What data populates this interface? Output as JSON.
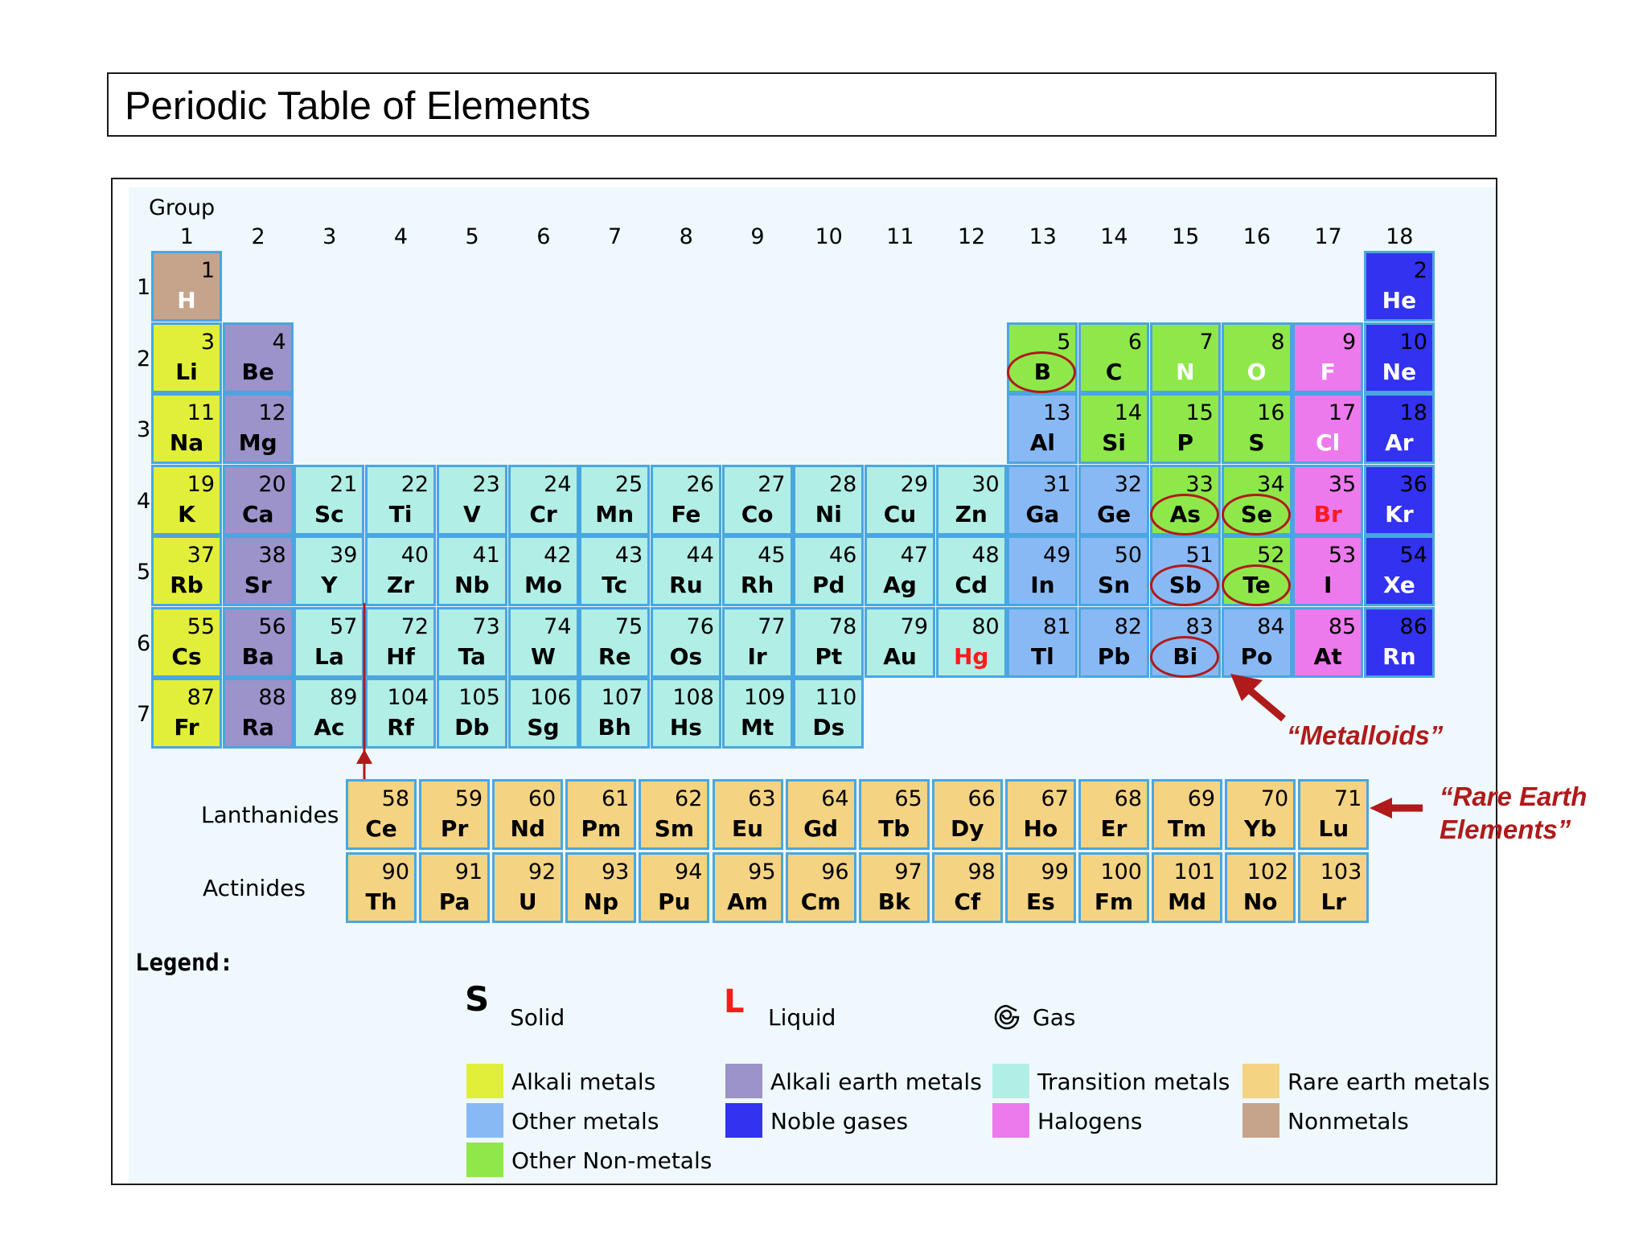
{
  "title": "Periodic Table of Elements",
  "group_caption": "Group",
  "group_numbers": [
    "1",
    "2",
    "3",
    "4",
    "5",
    "6",
    "7",
    "8",
    "9",
    "10",
    "11",
    "12",
    "13",
    "14",
    "15",
    "16",
    "17",
    "18"
  ],
  "period_numbers": [
    "1",
    "2",
    "3",
    "4",
    "5",
    "6",
    "7"
  ],
  "series_labels": {
    "lanthanides": "Lanthanides",
    "actinides": "Actinides"
  },
  "colors": {
    "alkali": "#e2ef3a",
    "alkaline_earth": "#9b93c9",
    "transition": "#b1eee6",
    "rare_earth": "#f4d382",
    "other_metal": "#89b9f5",
    "noble": "#3232f0",
    "halogen": "#ed7aed",
    "nonmetal": "#c6a38b",
    "other_nonmetal": "#8fe84a",
    "annotation": "#b01a1a",
    "liquid_text": "#ff1a1a"
  },
  "elements": [
    {
      "n": "1",
      "s": "H",
      "g": 1,
      "p": 1,
      "c": "nonmetal",
      "st": "gas"
    },
    {
      "n": "2",
      "s": "He",
      "g": 18,
      "p": 1,
      "c": "noble",
      "st": "gas"
    },
    {
      "n": "3",
      "s": "Li",
      "g": 1,
      "p": 2,
      "c": "alkali",
      "st": "solid"
    },
    {
      "n": "4",
      "s": "Be",
      "g": 2,
      "p": 2,
      "c": "alkaline_earth",
      "st": "solid"
    },
    {
      "n": "5",
      "s": "B",
      "g": 13,
      "p": 2,
      "c": "other_nonmetal",
      "st": "solid"
    },
    {
      "n": "6",
      "s": "C",
      "g": 14,
      "p": 2,
      "c": "other_nonmetal",
      "st": "solid"
    },
    {
      "n": "7",
      "s": "N",
      "g": 15,
      "p": 2,
      "c": "other_nonmetal",
      "st": "gas"
    },
    {
      "n": "8",
      "s": "O",
      "g": 16,
      "p": 2,
      "c": "other_nonmetal",
      "st": "gas"
    },
    {
      "n": "9",
      "s": "F",
      "g": 17,
      "p": 2,
      "c": "halogen",
      "st": "gas"
    },
    {
      "n": "10",
      "s": "Ne",
      "g": 18,
      "p": 2,
      "c": "noble",
      "st": "gas"
    },
    {
      "n": "11",
      "s": "Na",
      "g": 1,
      "p": 3,
      "c": "alkali",
      "st": "solid"
    },
    {
      "n": "12",
      "s": "Mg",
      "g": 2,
      "p": 3,
      "c": "alkaline_earth",
      "st": "solid"
    },
    {
      "n": "13",
      "s": "Al",
      "g": 13,
      "p": 3,
      "c": "other_metal",
      "st": "solid"
    },
    {
      "n": "14",
      "s": "Si",
      "g": 14,
      "p": 3,
      "c": "other_nonmetal",
      "st": "solid"
    },
    {
      "n": "15",
      "s": "P",
      "g": 15,
      "p": 3,
      "c": "other_nonmetal",
      "st": "solid"
    },
    {
      "n": "16",
      "s": "S",
      "g": 16,
      "p": 3,
      "c": "other_nonmetal",
      "st": "solid"
    },
    {
      "n": "17",
      "s": "Cl",
      "g": 17,
      "p": 3,
      "c": "halogen",
      "st": "gas"
    },
    {
      "n": "18",
      "s": "Ar",
      "g": 18,
      "p": 3,
      "c": "noble",
      "st": "gas"
    },
    {
      "n": "19",
      "s": "K",
      "g": 1,
      "p": 4,
      "c": "alkali",
      "st": "solid"
    },
    {
      "n": "20",
      "s": "Ca",
      "g": 2,
      "p": 4,
      "c": "alkaline_earth",
      "st": "solid"
    },
    {
      "n": "21",
      "s": "Sc",
      "g": 3,
      "p": 4,
      "c": "transition",
      "st": "solid"
    },
    {
      "n": "22",
      "s": "Ti",
      "g": 4,
      "p": 4,
      "c": "transition",
      "st": "solid"
    },
    {
      "n": "23",
      "s": "V",
      "g": 5,
      "p": 4,
      "c": "transition",
      "st": "solid"
    },
    {
      "n": "24",
      "s": "Cr",
      "g": 6,
      "p": 4,
      "c": "transition",
      "st": "solid"
    },
    {
      "n": "25",
      "s": "Mn",
      "g": 7,
      "p": 4,
      "c": "transition",
      "st": "solid"
    },
    {
      "n": "26",
      "s": "Fe",
      "g": 8,
      "p": 4,
      "c": "transition",
      "st": "solid"
    },
    {
      "n": "27",
      "s": "Co",
      "g": 9,
      "p": 4,
      "c": "transition",
      "st": "solid"
    },
    {
      "n": "28",
      "s": "Ni",
      "g": 10,
      "p": 4,
      "c": "transition",
      "st": "solid"
    },
    {
      "n": "29",
      "s": "Cu",
      "g": 11,
      "p": 4,
      "c": "transition",
      "st": "solid"
    },
    {
      "n": "30",
      "s": "Zn",
      "g": 12,
      "p": 4,
      "c": "transition",
      "st": "solid"
    },
    {
      "n": "31",
      "s": "Ga",
      "g": 13,
      "p": 4,
      "c": "other_metal",
      "st": "solid"
    },
    {
      "n": "32",
      "s": "Ge",
      "g": 14,
      "p": 4,
      "c": "other_metal",
      "st": "solid"
    },
    {
      "n": "33",
      "s": "As",
      "g": 15,
      "p": 4,
      "c": "other_nonmetal",
      "st": "solid"
    },
    {
      "n": "34",
      "s": "Se",
      "g": 16,
      "p": 4,
      "c": "other_nonmetal",
      "st": "solid"
    },
    {
      "n": "35",
      "s": "Br",
      "g": 17,
      "p": 4,
      "c": "halogen",
      "st": "liquid"
    },
    {
      "n": "36",
      "s": "Kr",
      "g": 18,
      "p": 4,
      "c": "noble",
      "st": "gas"
    },
    {
      "n": "37",
      "s": "Rb",
      "g": 1,
      "p": 5,
      "c": "alkali",
      "st": "solid"
    },
    {
      "n": "38",
      "s": "Sr",
      "g": 2,
      "p": 5,
      "c": "alkaline_earth",
      "st": "solid"
    },
    {
      "n": "39",
      "s": "Y",
      "g": 3,
      "p": 5,
      "c": "transition",
      "st": "solid"
    },
    {
      "n": "40",
      "s": "Zr",
      "g": 4,
      "p": 5,
      "c": "transition",
      "st": "solid"
    },
    {
      "n": "41",
      "s": "Nb",
      "g": 5,
      "p": 5,
      "c": "transition",
      "st": "solid"
    },
    {
      "n": "42",
      "s": "Mo",
      "g": 6,
      "p": 5,
      "c": "transition",
      "st": "solid"
    },
    {
      "n": "43",
      "s": "Tc",
      "g": 7,
      "p": 5,
      "c": "transition",
      "st": "solid"
    },
    {
      "n": "44",
      "s": "Ru",
      "g": 8,
      "p": 5,
      "c": "transition",
      "st": "solid"
    },
    {
      "n": "45",
      "s": "Rh",
      "g": 9,
      "p": 5,
      "c": "transition",
      "st": "solid"
    },
    {
      "n": "46",
      "s": "Pd",
      "g": 10,
      "p": 5,
      "c": "transition",
      "st": "solid"
    },
    {
      "n": "47",
      "s": "Ag",
      "g": 11,
      "p": 5,
      "c": "transition",
      "st": "solid"
    },
    {
      "n": "48",
      "s": "Cd",
      "g": 12,
      "p": 5,
      "c": "transition",
      "st": "solid"
    },
    {
      "n": "49",
      "s": "In",
      "g": 13,
      "p": 5,
      "c": "other_metal",
      "st": "solid"
    },
    {
      "n": "50",
      "s": "Sn",
      "g": 14,
      "p": 5,
      "c": "other_metal",
      "st": "solid"
    },
    {
      "n": "51",
      "s": "Sb",
      "g": 15,
      "p": 5,
      "c": "other_metal",
      "st": "solid"
    },
    {
      "n": "52",
      "s": "Te",
      "g": 16,
      "p": 5,
      "c": "other_nonmetal",
      "st": "solid"
    },
    {
      "n": "53",
      "s": "I",
      "g": 17,
      "p": 5,
      "c": "halogen",
      "st": "solid"
    },
    {
      "n": "54",
      "s": "Xe",
      "g": 18,
      "p": 5,
      "c": "noble",
      "st": "gas"
    },
    {
      "n": "55",
      "s": "Cs",
      "g": 1,
      "p": 6,
      "c": "alkali",
      "st": "solid"
    },
    {
      "n": "56",
      "s": "Ba",
      "g": 2,
      "p": 6,
      "c": "alkaline_earth",
      "st": "solid"
    },
    {
      "n": "57",
      "s": "La",
      "g": 3,
      "p": 6,
      "c": "transition",
      "st": "solid"
    },
    {
      "n": "72",
      "s": "Hf",
      "g": 4,
      "p": 6,
      "c": "transition",
      "st": "solid"
    },
    {
      "n": "73",
      "s": "Ta",
      "g": 5,
      "p": 6,
      "c": "transition",
      "st": "solid"
    },
    {
      "n": "74",
      "s": "W",
      "g": 6,
      "p": 6,
      "c": "transition",
      "st": "solid"
    },
    {
      "n": "75",
      "s": "Re",
      "g": 7,
      "p": 6,
      "c": "transition",
      "st": "solid"
    },
    {
      "n": "76",
      "s": "Os",
      "g": 8,
      "p": 6,
      "c": "transition",
      "st": "solid"
    },
    {
      "n": "77",
      "s": "Ir",
      "g": 9,
      "p": 6,
      "c": "transition",
      "st": "solid"
    },
    {
      "n": "78",
      "s": "Pt",
      "g": 10,
      "p": 6,
      "c": "transition",
      "st": "solid"
    },
    {
      "n": "79",
      "s": "Au",
      "g": 11,
      "p": 6,
      "c": "transition",
      "st": "solid"
    },
    {
      "n": "80",
      "s": "Hg",
      "g": 12,
      "p": 6,
      "c": "transition",
      "st": "liquid"
    },
    {
      "n": "81",
      "s": "Tl",
      "g": 13,
      "p": 6,
      "c": "other_metal",
      "st": "solid"
    },
    {
      "n": "82",
      "s": "Pb",
      "g": 14,
      "p": 6,
      "c": "other_metal",
      "st": "solid"
    },
    {
      "n": "83",
      "s": "Bi",
      "g": 15,
      "p": 6,
      "c": "other_metal",
      "st": "solid"
    },
    {
      "n": "84",
      "s": "Po",
      "g": 16,
      "p": 6,
      "c": "other_metal",
      "st": "solid"
    },
    {
      "n": "85",
      "s": "At",
      "g": 17,
      "p": 6,
      "c": "halogen",
      "st": "solid"
    },
    {
      "n": "86",
      "s": "Rn",
      "g": 18,
      "p": 6,
      "c": "noble",
      "st": "gas"
    },
    {
      "n": "87",
      "s": "Fr",
      "g": 1,
      "p": 7,
      "c": "alkali",
      "st": "solid"
    },
    {
      "n": "88",
      "s": "Ra",
      "g": 2,
      "p": 7,
      "c": "alkaline_earth",
      "st": "solid"
    },
    {
      "n": "89",
      "s": "Ac",
      "g": 3,
      "p": 7,
      "c": "transition",
      "st": "solid"
    },
    {
      "n": "104",
      "s": "Rf",
      "g": 4,
      "p": 7,
      "c": "transition",
      "st": "solid"
    },
    {
      "n": "105",
      "s": "Db",
      "g": 5,
      "p": 7,
      "c": "transition",
      "st": "solid"
    },
    {
      "n": "106",
      "s": "Sg",
      "g": 6,
      "p": 7,
      "c": "transition",
      "st": "solid"
    },
    {
      "n": "107",
      "s": "Bh",
      "g": 7,
      "p": 7,
      "c": "transition",
      "st": "solid"
    },
    {
      "n": "108",
      "s": "Hs",
      "g": 8,
      "p": 7,
      "c": "transition",
      "st": "solid"
    },
    {
      "n": "109",
      "s": "Mt",
      "g": 9,
      "p": 7,
      "c": "transition",
      "st": "solid"
    },
    {
      "n": "110",
      "s": "Ds",
      "g": 10,
      "p": 7,
      "c": "transition",
      "st": "solid"
    }
  ],
  "lanthanides": [
    {
      "n": "58",
      "s": "Ce"
    },
    {
      "n": "59",
      "s": "Pr"
    },
    {
      "n": "60",
      "s": "Nd"
    },
    {
      "n": "61",
      "s": "Pm"
    },
    {
      "n": "62",
      "s": "Sm"
    },
    {
      "n": "63",
      "s": "Eu"
    },
    {
      "n": "64",
      "s": "Gd"
    },
    {
      "n": "65",
      "s": "Tb"
    },
    {
      "n": "66",
      "s": "Dy"
    },
    {
      "n": "67",
      "s": "Ho"
    },
    {
      "n": "68",
      "s": "Er"
    },
    {
      "n": "69",
      "s": "Tm"
    },
    {
      "n": "70",
      "s": "Yb"
    },
    {
      "n": "71",
      "s": "Lu"
    }
  ],
  "actinides": [
    {
      "n": "90",
      "s": "Th"
    },
    {
      "n": "91",
      "s": "Pa"
    },
    {
      "n": "92",
      "s": "U"
    },
    {
      "n": "93",
      "s": "Np"
    },
    {
      "n": "94",
      "s": "Pu"
    },
    {
      "n": "95",
      "s": "Am"
    },
    {
      "n": "96",
      "s": "Cm"
    },
    {
      "n": "97",
      "s": "Bk"
    },
    {
      "n": "98",
      "s": "Cf"
    },
    {
      "n": "99",
      "s": "Es"
    },
    {
      "n": "100",
      "s": "Fm"
    },
    {
      "n": "101",
      "s": "Md"
    },
    {
      "n": "102",
      "s": "No"
    },
    {
      "n": "103",
      "s": "Lr"
    }
  ],
  "metalloids_circled": [
    "B",
    "As",
    "Se",
    "Sb",
    "Te",
    "Bi"
  ],
  "annotations": {
    "metalloids": "“Metalloids”",
    "rare_earth_line1": "“Rare Earth",
    "rare_earth_line2": "Elements”"
  },
  "legend": {
    "title": "Legend:",
    "states": {
      "solid_symbol": "S",
      "solid_label": "Solid",
      "liquid_symbol": "L",
      "liquid_label": "Liquid",
      "gas_icon": "gas-swirl-icon",
      "gas_label": "Gas"
    },
    "categories": {
      "alkali": "Alkali metals",
      "alkaline_earth": "Alkali earth metals",
      "transition": "Transition metals",
      "rare_earth": "Rare earth metals",
      "other_metal": "Other metals",
      "noble": "Noble gases",
      "halogen": "Halogens",
      "nonmetal": "Nonmetals",
      "other_nonmetal": "Other Non-metals"
    }
  }
}
